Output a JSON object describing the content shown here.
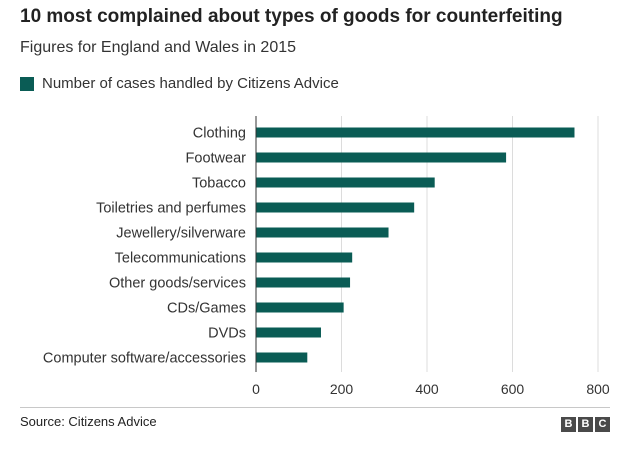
{
  "colors": {
    "bar": "#0a5c55",
    "grid": "#dcdcdc",
    "axis": "#333333"
  },
  "chart_data": {
    "type": "bar",
    "orientation": "horizontal",
    "title": "10 most complained about types of goods for counterfeiting",
    "subtitle": "Figures for England and Wales in 2015",
    "legend": "Number of cases handled by Citizens Advice",
    "categories": [
      "Clothing",
      "Footwear",
      "Tobacco",
      "Toiletries and perfumes",
      "Jewellery/silverware",
      "Telecommunications",
      "Other goods/services",
      "CDs/Games",
      "DVDs",
      "Computer software/accessories"
    ],
    "values": [
      745,
      585,
      418,
      370,
      310,
      225,
      220,
      205,
      152,
      120
    ],
    "xlim": [
      0,
      800
    ],
    "xticks": [
      0,
      200,
      400,
      600,
      800
    ],
    "xlabel": "",
    "ylabel": "",
    "grid": true
  },
  "footer": {
    "source": "Source: Citizens Advice",
    "logo": [
      "B",
      "B",
      "C"
    ]
  }
}
